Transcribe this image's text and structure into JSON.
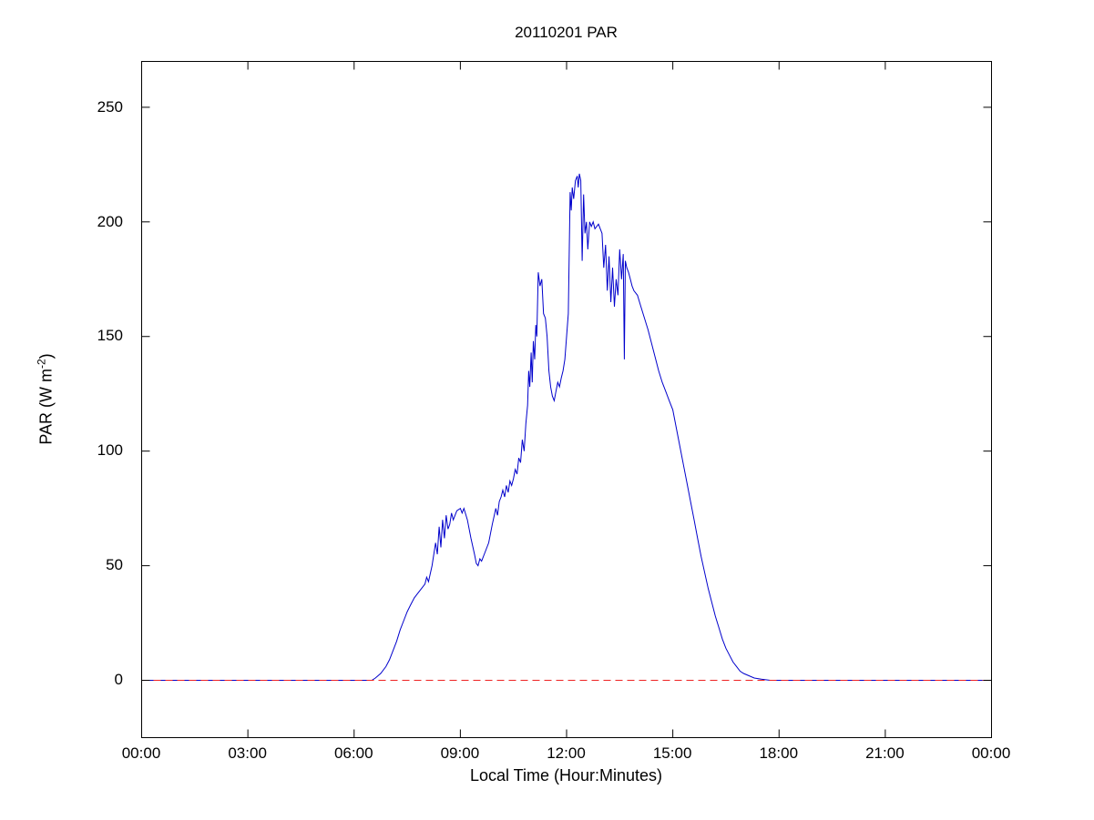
{
  "figure": {
    "background": "#ffffff"
  },
  "chart_data": {
    "type": "line",
    "title": "20110201 PAR",
    "xlabel": "Local Time (Hour:Minutes)",
    "ylabel": {
      "prefix": "PAR (W m",
      "superscript": "-2",
      "suffix": ")"
    },
    "x_tick_labels": [
      "00:00",
      "03:00",
      "06:00",
      "09:00",
      "12:00",
      "15:00",
      "18:00",
      "21:00",
      "00:00"
    ],
    "x_tick_hours": [
      0,
      3,
      6,
      9,
      12,
      15,
      18,
      21,
      24
    ],
    "y_tick_labels": [
      "250",
      "200",
      "150",
      "100",
      "50",
      "0"
    ],
    "y_tick_values": [
      250,
      200,
      150,
      100,
      50,
      0
    ],
    "xlim_hours": [
      0,
      24
    ],
    "ylim": [
      -25,
      270
    ],
    "grid": false,
    "legend": "none",
    "axis_color": "#000000",
    "series": [
      {
        "name": "PAR",
        "color": "#0000cc",
        "style": "solid",
        "points": [
          [
            0,
            0
          ],
          [
            6.5,
            0
          ],
          [
            6.6,
            1
          ],
          [
            6.75,
            3
          ],
          [
            6.9,
            6
          ],
          [
            7.0,
            9
          ],
          [
            7.1,
            13
          ],
          [
            7.2,
            17
          ],
          [
            7.3,
            22
          ],
          [
            7.4,
            26
          ],
          [
            7.5,
            30
          ],
          [
            7.6,
            33
          ],
          [
            7.7,
            36
          ],
          [
            7.8,
            38
          ],
          [
            7.9,
            40
          ],
          [
            8.0,
            42
          ],
          [
            8.05,
            45
          ],
          [
            8.1,
            43
          ],
          [
            8.2,
            50
          ],
          [
            8.3,
            60
          ],
          [
            8.35,
            55
          ],
          [
            8.4,
            67
          ],
          [
            8.45,
            58
          ],
          [
            8.5,
            70
          ],
          [
            8.55,
            62
          ],
          [
            8.6,
            72
          ],
          [
            8.65,
            66
          ],
          [
            8.7,
            68
          ],
          [
            8.75,
            73
          ],
          [
            8.8,
            70
          ],
          [
            8.9,
            74
          ],
          [
            9.0,
            75
          ],
          [
            9.05,
            73
          ],
          [
            9.1,
            75
          ],
          [
            9.2,
            70
          ],
          [
            9.3,
            62
          ],
          [
            9.4,
            55
          ],
          [
            9.45,
            51
          ],
          [
            9.5,
            50
          ],
          [
            9.55,
            53
          ],
          [
            9.6,
            52
          ],
          [
            9.7,
            56
          ],
          [
            9.8,
            60
          ],
          [
            9.9,
            68
          ],
          [
            10.0,
            75
          ],
          [
            10.05,
            72
          ],
          [
            10.1,
            78
          ],
          [
            10.15,
            80
          ],
          [
            10.2,
            83
          ],
          [
            10.25,
            80
          ],
          [
            10.3,
            85
          ],
          [
            10.35,
            82
          ],
          [
            10.4,
            87
          ],
          [
            10.45,
            85
          ],
          [
            10.5,
            88
          ],
          [
            10.55,
            92
          ],
          [
            10.6,
            90
          ],
          [
            10.65,
            97
          ],
          [
            10.7,
            95
          ],
          [
            10.75,
            105
          ],
          [
            10.8,
            100
          ],
          [
            10.85,
            112
          ],
          [
            10.9,
            120
          ],
          [
            10.93,
            135
          ],
          [
            10.96,
            128
          ],
          [
            11.0,
            143
          ],
          [
            11.03,
            130
          ],
          [
            11.06,
            148
          ],
          [
            11.1,
            140
          ],
          [
            11.13,
            155
          ],
          [
            11.16,
            150
          ],
          [
            11.2,
            178
          ],
          [
            11.25,
            172
          ],
          [
            11.3,
            175
          ],
          [
            11.35,
            160
          ],
          [
            11.4,
            158
          ],
          [
            11.45,
            150
          ],
          [
            11.5,
            135
          ],
          [
            11.55,
            128
          ],
          [
            11.6,
            124
          ],
          [
            11.65,
            122
          ],
          [
            11.7,
            126
          ],
          [
            11.75,
            130
          ],
          [
            11.8,
            128
          ],
          [
            11.85,
            132
          ],
          [
            11.9,
            135
          ],
          [
            11.95,
            140
          ],
          [
            12.0,
            150
          ],
          [
            12.05,
            160
          ],
          [
            12.1,
            213
          ],
          [
            12.13,
            205
          ],
          [
            12.16,
            215
          ],
          [
            12.2,
            210
          ],
          [
            12.25,
            218
          ],
          [
            12.3,
            220
          ],
          [
            12.33,
            215
          ],
          [
            12.36,
            221
          ],
          [
            12.4,
            218
          ],
          [
            12.44,
            183
          ],
          [
            12.48,
            212
          ],
          [
            12.52,
            195
          ],
          [
            12.56,
            200
          ],
          [
            12.6,
            188
          ],
          [
            12.65,
            200
          ],
          [
            12.7,
            198
          ],
          [
            12.75,
            200
          ],
          [
            12.8,
            197
          ],
          [
            12.9,
            199
          ],
          [
            13.0,
            195
          ],
          [
            13.05,
            180
          ],
          [
            13.1,
            190
          ],
          [
            13.15,
            170
          ],
          [
            13.2,
            185
          ],
          [
            13.25,
            165
          ],
          [
            13.3,
            180
          ],
          [
            13.35,
            163
          ],
          [
            13.4,
            175
          ],
          [
            13.45,
            168
          ],
          [
            13.5,
            188
          ],
          [
            13.55,
            175
          ],
          [
            13.6,
            186
          ],
          [
            13.63,
            140
          ],
          [
            13.66,
            183
          ],
          [
            13.7,
            180
          ],
          [
            13.75,
            178
          ],
          [
            13.8,
            175
          ],
          [
            13.85,
            172
          ],
          [
            13.9,
            170
          ],
          [
            14.0,
            168
          ],
          [
            14.1,
            163
          ],
          [
            14.2,
            158
          ],
          [
            14.3,
            153
          ],
          [
            14.4,
            147
          ],
          [
            14.5,
            141
          ],
          [
            14.6,
            135
          ],
          [
            14.7,
            130
          ],
          [
            14.8,
            126
          ],
          [
            14.9,
            122
          ],
          [
            15.0,
            118
          ],
          [
            15.1,
            110
          ],
          [
            15.2,
            102
          ],
          [
            15.3,
            94
          ],
          [
            15.4,
            86
          ],
          [
            15.5,
            78
          ],
          [
            15.6,
            70
          ],
          [
            15.7,
            62
          ],
          [
            15.8,
            54
          ],
          [
            15.9,
            47
          ],
          [
            16.0,
            40
          ],
          [
            16.1,
            34
          ],
          [
            16.2,
            28
          ],
          [
            16.3,
            23
          ],
          [
            16.4,
            18
          ],
          [
            16.5,
            14
          ],
          [
            16.6,
            11
          ],
          [
            16.7,
            8
          ],
          [
            16.8,
            6
          ],
          [
            16.9,
            4
          ],
          [
            17.0,
            3
          ],
          [
            17.15,
            2
          ],
          [
            17.3,
            1
          ],
          [
            17.5,
            0.5
          ],
          [
            17.75,
            0
          ],
          [
            18.0,
            0
          ],
          [
            24.0,
            0
          ]
        ]
      },
      {
        "name": "zero-reference",
        "color": "#ee2222",
        "style": "dashed",
        "points": [
          [
            0,
            0
          ],
          [
            24,
            0
          ]
        ]
      }
    ]
  }
}
